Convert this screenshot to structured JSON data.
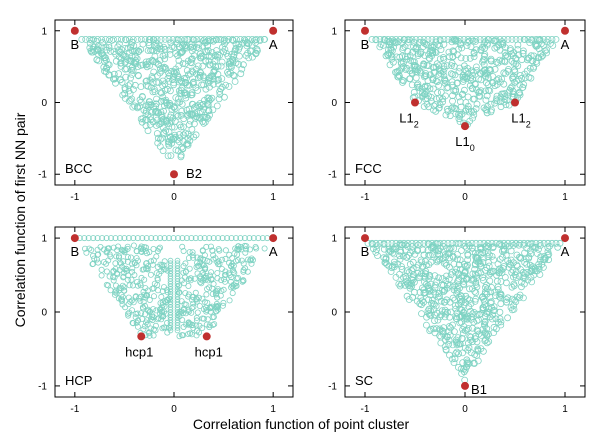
{
  "chart_data": [
    {
      "type": "scatter",
      "panel_label": "BCC",
      "xlim": [
        -1.2,
        1.2
      ],
      "ylim": [
        -1.15,
        1.15
      ],
      "xticks": [
        -1,
        0,
        1
      ],
      "yticks": [
        -1,
        0,
        1
      ],
      "region": "triangle",
      "region_vertices": [
        [
          -0.93,
          0.88
        ],
        [
          0.93,
          0.88
        ],
        [
          0,
          -0.92
        ]
      ],
      "series": [
        {
          "color": "#7fd3c3",
          "marker": "open-circle",
          "sample_points": [
            [
              -0.9,
              0.87
            ],
            [
              -0.6,
              0.87
            ],
            [
              -0.3,
              0.87
            ],
            [
              0,
              0.87
            ],
            [
              0.3,
              0.87
            ],
            [
              0.6,
              0.87
            ],
            [
              0.9,
              0.87
            ],
            [
              -0.6,
              0.3
            ],
            [
              -0.3,
              0.3
            ],
            [
              0,
              0.3
            ],
            [
              0.3,
              0.3
            ],
            [
              0.6,
              0.3
            ],
            [
              -0.4,
              0
            ],
            [
              0,
              0
            ],
            [
              0.4,
              0
            ],
            [
              -0.2,
              -0.5
            ],
            [
              0,
              -0.5
            ],
            [
              0.2,
              -0.5
            ],
            [
              0,
              -0.9
            ]
          ]
        },
        {
          "color": "#c0302f",
          "marker": "filled-circle",
          "points": [
            {
              "x": -1,
              "y": 1,
              "label": "B"
            },
            {
              "x": 1,
              "y": 1,
              "label": "A"
            },
            {
              "x": 0,
              "y": -1,
              "label": "B2"
            }
          ]
        }
      ]
    },
    {
      "type": "scatter",
      "panel_label": "FCC",
      "xlim": [
        -1.2,
        1.2
      ],
      "ylim": [
        -1.15,
        1.15
      ],
      "xticks": [
        -1,
        0,
        1
      ],
      "yticks": [
        -1,
        0,
        1
      ],
      "region": "polygon",
      "region_vertices": [
        [
          -0.93,
          0.88
        ],
        [
          0.93,
          0.88
        ],
        [
          0.5,
          0
        ],
        [
          0,
          -0.33
        ],
        [
          -0.5,
          0
        ]
      ],
      "series": [
        {
          "color": "#7fd3c3",
          "marker": "open-circle",
          "sample_points": [
            [
              -0.9,
              0.87
            ],
            [
              -0.5,
              0.87
            ],
            [
              0,
              0.87
            ],
            [
              0.5,
              0.87
            ],
            [
              0.9,
              0.87
            ],
            [
              -0.5,
              0.4
            ],
            [
              0,
              0.4
            ],
            [
              0.5,
              0.4
            ],
            [
              -0.3,
              0
            ],
            [
              0,
              0
            ],
            [
              0.3,
              0
            ],
            [
              0,
              -0.3
            ]
          ]
        },
        {
          "color": "#c0302f",
          "marker": "filled-circle",
          "points": [
            {
              "x": -1,
              "y": 1,
              "label": "B"
            },
            {
              "x": 1,
              "y": 1,
              "label": "A"
            },
            {
              "x": -0.5,
              "y": 0,
              "label": "L1",
              "sub": "2"
            },
            {
              "x": 0.5,
              "y": 0,
              "label": "L1",
              "sub": "2"
            },
            {
              "x": 0,
              "y": -0.33,
              "label": "L1",
              "sub": "0"
            }
          ]
        }
      ]
    },
    {
      "type": "scatter",
      "panel_label": "HCP",
      "xlim": [
        -1.2,
        1.2
      ],
      "ylim": [
        -1.15,
        1.15
      ],
      "xticks": [
        -1,
        0,
        1
      ],
      "yticks": [
        -1,
        0,
        1
      ],
      "region": "two-lobes",
      "series": [
        {
          "color": "#7fd3c3",
          "marker": "open-circle",
          "sample_points": [
            [
              -0.95,
              1
            ],
            [
              -0.7,
              1
            ],
            [
              -0.4,
              1
            ],
            [
              -0.1,
              1
            ],
            [
              0.1,
              1
            ],
            [
              0.4,
              1
            ],
            [
              0.7,
              1
            ],
            [
              0.95,
              1
            ],
            [
              -0.7,
              0.6
            ],
            [
              -0.4,
              0.6
            ],
            [
              -0.1,
              0.6
            ],
            [
              0.1,
              0.6
            ],
            [
              0.4,
              0.6
            ],
            [
              0.7,
              0.6
            ],
            [
              -0.3,
              0
            ],
            [
              -0.1,
              0
            ],
            [
              0.1,
              0
            ],
            [
              0.3,
              0
            ],
            [
              -0.03,
              -0.25
            ],
            [
              0.03,
              -0.25
            ]
          ]
        },
        {
          "color": "#c0302f",
          "marker": "filled-circle",
          "points": [
            {
              "x": -1,
              "y": 1,
              "label": "B"
            },
            {
              "x": 1,
              "y": 1,
              "label": "A"
            },
            {
              "x": -0.33,
              "y": -0.33,
              "label": "hcp1"
            },
            {
              "x": 0.33,
              "y": -0.33,
              "label": "hcp1"
            }
          ]
        }
      ]
    },
    {
      "type": "scatter",
      "panel_label": "SC",
      "xlim": [
        -1.2,
        1.2
      ],
      "ylim": [
        -1.15,
        1.15
      ],
      "xticks": [
        -1,
        0,
        1
      ],
      "yticks": [
        -1,
        0,
        1
      ],
      "region": "triangle",
      "region_vertices": [
        [
          -0.97,
          0.93
        ],
        [
          0.97,
          0.93
        ],
        [
          0,
          -0.93
        ]
      ],
      "series": [
        {
          "color": "#7fd3c3",
          "marker": "open-circle",
          "sample_points": [
            [
              -0.95,
              0.92
            ],
            [
              -0.5,
              0.92
            ],
            [
              0,
              0.92
            ],
            [
              0.5,
              0.92
            ],
            [
              0.95,
              0.92
            ],
            [
              -0.6,
              0.3
            ],
            [
              0,
              0.3
            ],
            [
              0.6,
              0.3
            ],
            [
              -0.3,
              -0.3
            ],
            [
              0,
              -0.3
            ],
            [
              0.3,
              -0.3
            ],
            [
              0,
              -0.9
            ]
          ]
        },
        {
          "color": "#c0302f",
          "marker": "filled-circle",
          "points": [
            {
              "x": -1,
              "y": 1,
              "label": "B"
            },
            {
              "x": 1,
              "y": 1,
              "label": "A"
            },
            {
              "x": 0,
              "y": -1,
              "label": "B1"
            }
          ]
        }
      ]
    }
  ],
  "xlabel": "Correlation function of point cluster",
  "ylabel": "Correlation function of first NN pair"
}
